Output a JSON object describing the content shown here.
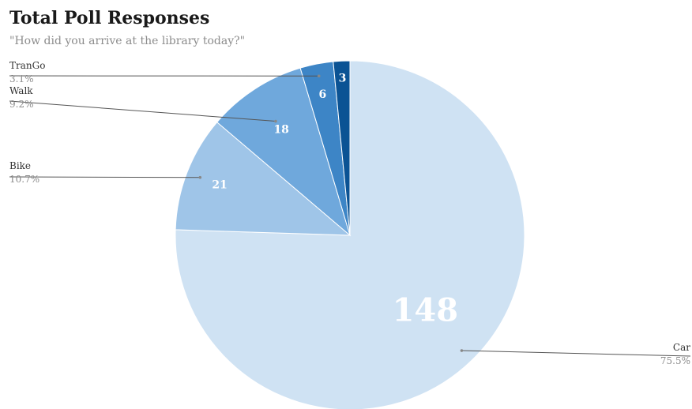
{
  "chart_data": {
    "type": "pie",
    "title": "Total Poll Responses",
    "subtitle": "\"How did you arrive at the library today?\"",
    "slices": [
      {
        "label": "Car",
        "value": 148,
        "percent": "75.5%",
        "color": "#cfe2f3"
      },
      {
        "label": "Bike",
        "value": 21,
        "percent": "10.7%",
        "color": "#9fc5e8"
      },
      {
        "label": "Walk",
        "value": 18,
        "percent": "9.2%",
        "color": "#6fa8dc"
      },
      {
        "label": "TranGo",
        "value": 6,
        "percent": "3.1%",
        "color": "#3d85c6"
      },
      {
        "label": "",
        "value": 3,
        "percent": "",
        "color": "#0b5394"
      }
    ]
  }
}
